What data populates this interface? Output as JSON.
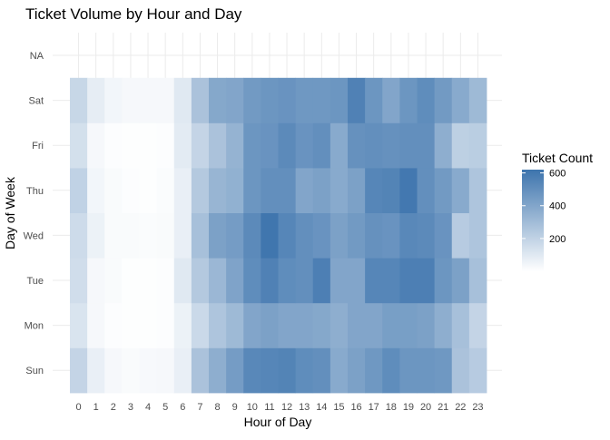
{
  "chart_data": {
    "type": "heatmap",
    "title": "Ticket Volume by Hour and Day",
    "xlabel": "Hour of Day",
    "ylabel": "Day of Week",
    "x_categories": [
      "0",
      "1",
      "2",
      "3",
      "4",
      "5",
      "6",
      "7",
      "8",
      "9",
      "10",
      "11",
      "12",
      "13",
      "14",
      "15",
      "16",
      "17",
      "18",
      "19",
      "20",
      "21",
      "22",
      "23"
    ],
    "y_categories": [
      "Sun",
      "Mon",
      "Tue",
      "Wed",
      "Thu",
      "Fri",
      "Sat",
      "NA"
    ],
    "rows": [
      {
        "day": "Sun",
        "values": [
          190,
          70,
          30,
          20,
          25,
          30,
          70,
          270,
          360,
          440,
          530,
          540,
          550,
          510,
          500,
          380,
          420,
          460,
          510,
          470,
          470,
          460,
          270,
          230
        ]
      },
      {
        "day": "Mon",
        "values": [
          120,
          30,
          10,
          5,
          5,
          10,
          60,
          170,
          260,
          310,
          400,
          420,
          400,
          400,
          390,
          360,
          400,
          400,
          430,
          430,
          420,
          360,
          280,
          190
        ]
      },
      {
        "day": "Tue",
        "values": [
          150,
          30,
          20,
          5,
          5,
          10,
          100,
          240,
          320,
          410,
          510,
          560,
          510,
          500,
          570,
          400,
          400,
          540,
          540,
          570,
          570,
          470,
          420,
          280
        ]
      },
      {
        "day": "Wed",
        "values": [
          160,
          60,
          20,
          20,
          15,
          20,
          70,
          280,
          420,
          440,
          520,
          610,
          540,
          500,
          480,
          420,
          450,
          490,
          480,
          530,
          520,
          480,
          230,
          260
        ]
      },
      {
        "day": "Thu",
        "values": [
          200,
          40,
          20,
          10,
          5,
          15,
          70,
          240,
          330,
          350,
          470,
          500,
          500,
          400,
          420,
          380,
          420,
          540,
          550,
          600,
          500,
          450,
          380,
          260
        ]
      },
      {
        "day": "Fri",
        "values": [
          140,
          30,
          10,
          5,
          5,
          10,
          90,
          190,
          270,
          340,
          470,
          480,
          520,
          480,
          500,
          380,
          490,
          500,
          490,
          500,
          500,
          360,
          210,
          220
        ]
      },
      {
        "day": "Sat",
        "values": [
          180,
          80,
          40,
          30,
          30,
          30,
          100,
          270,
          390,
          400,
          450,
          470,
          480,
          460,
          460,
          470,
          560,
          470,
          400,
          470,
          510,
          450,
          380,
          310
        ]
      },
      {
        "day": "NA",
        "values": []
      }
    ],
    "legend": {
      "title": "Ticket Count",
      "position": "right",
      "breaks": [
        200,
        400,
        600
      ],
      "limits": [
        0,
        620
      ],
      "color_low": "#ffffff",
      "color_high": "#3d74ad"
    },
    "grid": true
  }
}
